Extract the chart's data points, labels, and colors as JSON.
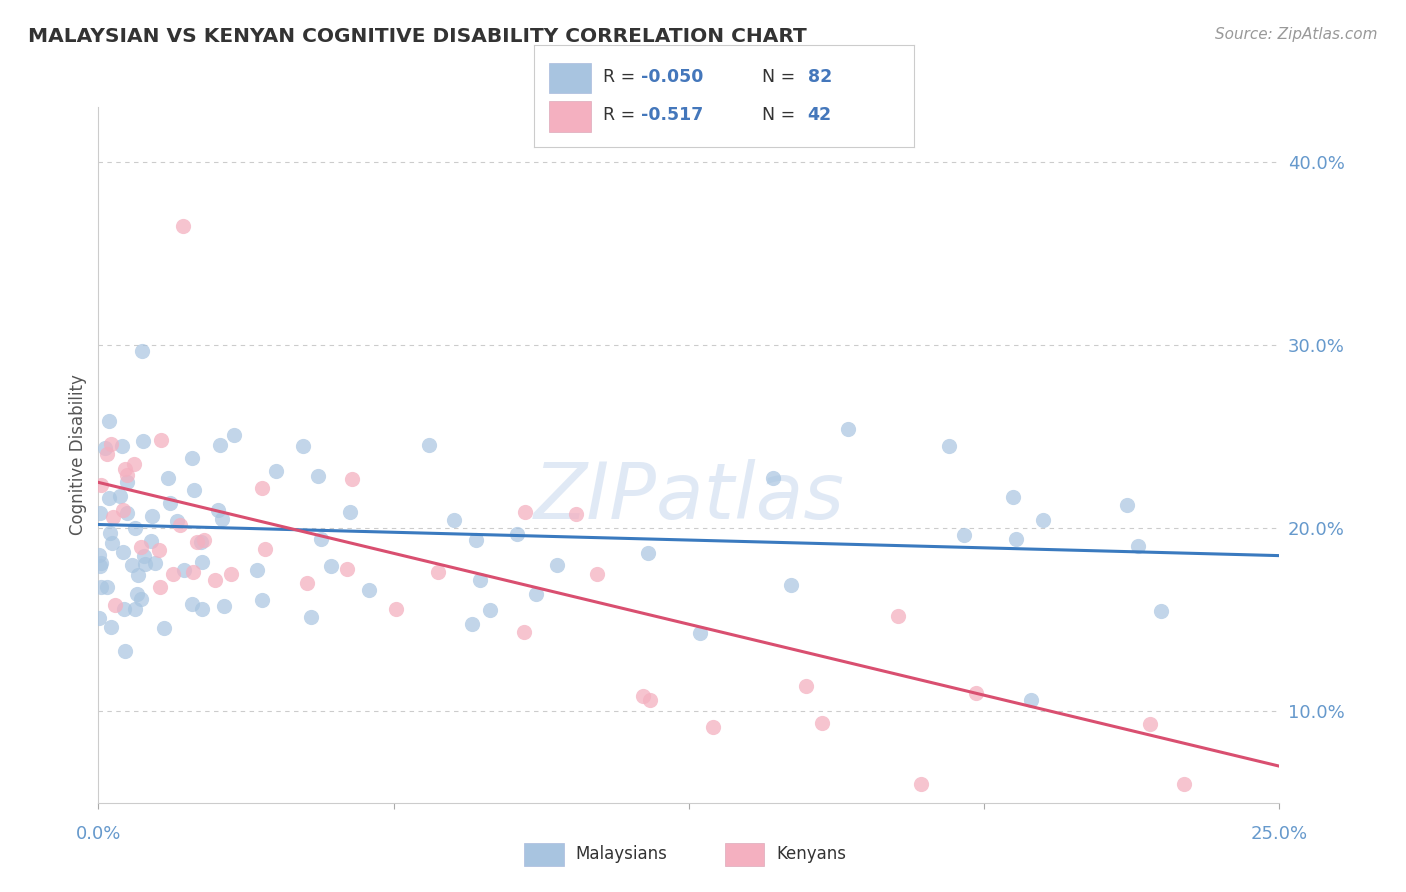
{
  "title": "MALAYSIAN VS KENYAN COGNITIVE DISABILITY CORRELATION CHART",
  "source": "Source: ZipAtlas.com",
  "ylabel": "Cognitive Disability",
  "right_yticks": [
    10.0,
    20.0,
    30.0,
    40.0
  ],
  "right_ytick_labels": [
    "10.0%",
    "20.0%",
    "30.0%",
    "40.0%"
  ],
  "watermark": "ZIPatlas",
  "R_malaysian": -0.05,
  "N_malaysian": 82,
  "R_kenyan": -0.517,
  "N_kenyan": 42,
  "xmin": 0.0,
  "xmax": 25.0,
  "ymin": 5.0,
  "ymax": 43.0,
  "malaysian_color": "#a8c4e0",
  "kenyan_color": "#f4b0c0",
  "trend_malaysian_color": "#3a7abf",
  "trend_kenyan_color": "#d94f70",
  "background_color": "#ffffff",
  "grid_color": "#cccccc",
  "title_color": "#333333",
  "axis_label_color": "#6699cc",
  "legend_r_color": "#333333",
  "legend_n_color": "#4477bb",
  "seed": 12
}
